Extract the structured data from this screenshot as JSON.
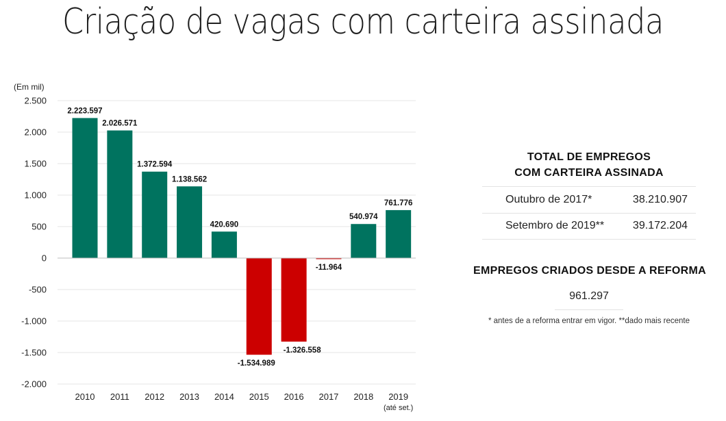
{
  "page": {
    "title": "Criação de vagas com carteira assinada"
  },
  "summary": {
    "total_heading_line1": "TOTAL DE EMPREGOS",
    "total_heading_line2": "COM CARTEIRA ASSINADA",
    "rows": [
      {
        "label": "Outubro de 2017*",
        "value": "38.210.907"
      },
      {
        "label": "Setembro de 2019**",
        "value": "39.172.204"
      }
    ],
    "created_heading": "EMPREGOS CRIADOS DESDE A REFORMA",
    "created_value": "961.297",
    "footnote": "* antes de a reforma entrar em vigor. **dado mais recente"
  },
  "chart_data": {
    "type": "bar",
    "unit_label": "(Em mil)",
    "categories": [
      "2010",
      "2011",
      "2012",
      "2013",
      "2014",
      "2015",
      "2016",
      "2017",
      "2018",
      "2019"
    ],
    "category_sublabels": [
      "",
      "",
      "",
      "",
      "",
      "",
      "",
      "",
      "",
      "(até set.)"
    ],
    "values": [
      2223.597,
      2026.571,
      1372.594,
      1138.562,
      420.69,
      -1534.989,
      -1326.558,
      -11.964,
      540.974,
      761.776
    ],
    "value_labels": [
      "2.223.597",
      "2.026.571",
      "1.372.594",
      "1.138.562",
      "420.690",
      "-1.534.989",
      "-1.326.558",
      "-11.964",
      "540.974",
      "761.776"
    ],
    "yticks": [
      2500,
      2000,
      1500,
      1000,
      500,
      0,
      -500,
      -1000,
      -1500,
      -2000
    ],
    "ytick_labels": [
      "2.500",
      "2.000",
      "1.500",
      "1.000",
      "500",
      "0",
      "-500",
      "-1.000",
      "-1.500",
      "-2.000"
    ],
    "ylim": [
      -2000,
      2500
    ],
    "grid": true,
    "colors": {
      "positive": "#00735f",
      "negative": "#cc0000",
      "grid": "#e6e6e6",
      "zero": "#bdbdbd"
    }
  }
}
